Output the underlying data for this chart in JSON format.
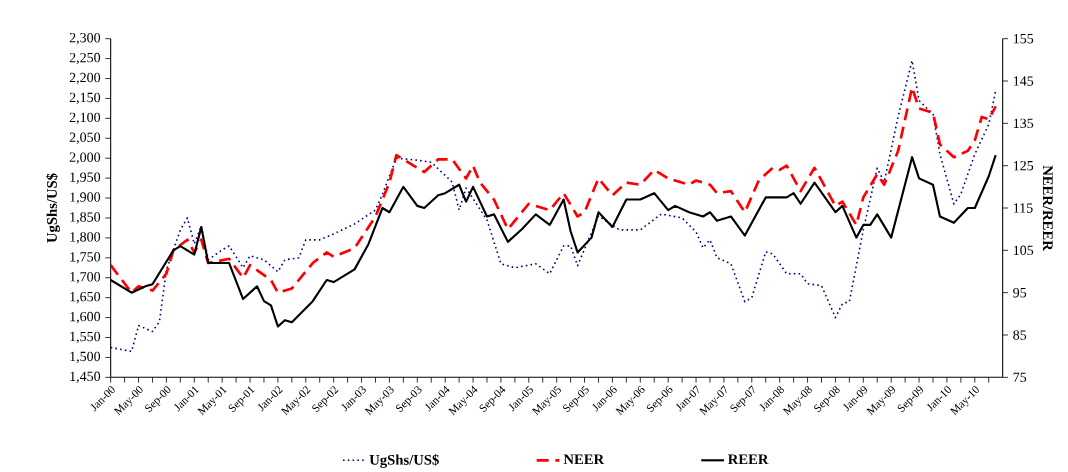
{
  "chart_data": {
    "type": "line",
    "ylabel": "UgShs/US$",
    "y2label": "NEER/REER",
    "legend": "bottom",
    "xlim": [
      "2000-01",
      "2010-09"
    ],
    "ylim": [
      1450,
      2300
    ],
    "y2lim": [
      75,
      155
    ],
    "yticks": [
      {
        "value": 1450,
        "label": "1,450"
      },
      {
        "value": 1500,
        "label": "1,500"
      },
      {
        "value": 1550,
        "label": "1,550"
      },
      {
        "value": 1600,
        "label": "1,600"
      },
      {
        "value": 1650,
        "label": "1,650"
      },
      {
        "value": 1700,
        "label": "1,700"
      },
      {
        "value": 1750,
        "label": "1,750"
      },
      {
        "value": 1800,
        "label": "1,800"
      },
      {
        "value": 1850,
        "label": "1,850"
      },
      {
        "value": 1900,
        "label": "1,900"
      },
      {
        "value": 1950,
        "label": "1,950"
      },
      {
        "value": 2000,
        "label": "2,000"
      },
      {
        "value": 2050,
        "label": "2,050"
      },
      {
        "value": 2100,
        "label": "2,100"
      },
      {
        "value": 2150,
        "label": "2,150"
      },
      {
        "value": 2200,
        "label": "2,200"
      },
      {
        "value": 2250,
        "label": "2,250"
      },
      {
        "value": 2300,
        "label": "2,300"
      }
    ],
    "y2ticks": [
      75,
      85,
      95,
      105,
      115,
      125,
      135,
      145,
      155
    ],
    "xticks": [
      {
        "value": "2000-01",
        "label": "Jan-00"
      },
      {
        "value": "2000-03",
        "label": null
      },
      {
        "value": "2000-05",
        "label": "May-00"
      },
      {
        "value": "2000-07",
        "label": null
      },
      {
        "value": "2000-09",
        "label": "Sep-00"
      },
      {
        "value": "2000-11",
        "label": null
      },
      {
        "value": "2001-01",
        "label": "Jan-01"
      },
      {
        "value": "2001-03",
        "label": null
      },
      {
        "value": "2001-05",
        "label": "May-01"
      },
      {
        "value": "2001-07",
        "label": null
      },
      {
        "value": "2001-09",
        "label": "Sep-01"
      },
      {
        "value": "2001-11",
        "label": null
      },
      {
        "value": "2002-01",
        "label": "Jan-02"
      },
      {
        "value": "2002-03",
        "label": null
      },
      {
        "value": "2002-05",
        "label": "May-02"
      },
      {
        "value": "2002-07",
        "label": null
      },
      {
        "value": "2002-09",
        "label": "Sep-02"
      },
      {
        "value": "2002-11",
        "label": null
      },
      {
        "value": "2003-01",
        "label": "Jan-03"
      },
      {
        "value": "2003-03",
        "label": null
      },
      {
        "value": "2003-05",
        "label": "May-03"
      },
      {
        "value": "2003-07",
        "label": null
      },
      {
        "value": "2003-09",
        "label": "Sep-03"
      },
      {
        "value": "2003-11",
        "label": null
      },
      {
        "value": "2004-01",
        "label": "Jan-04"
      },
      {
        "value": "2004-03",
        "label": null
      },
      {
        "value": "2004-05",
        "label": "May-04"
      },
      {
        "value": "2004-07",
        "label": null
      },
      {
        "value": "2004-09",
        "label": "Sep-04"
      },
      {
        "value": "2004-11",
        "label": null
      },
      {
        "value": "2005-01",
        "label": "Jan-05"
      },
      {
        "value": "2005-03",
        "label": null
      },
      {
        "value": "2005-05",
        "label": "May-05"
      },
      {
        "value": "2005-07",
        "label": null
      },
      {
        "value": "2005-09",
        "label": "Sep-05"
      },
      {
        "value": "2005-11",
        "label": null
      },
      {
        "value": "2006-01",
        "label": "Jan-06"
      },
      {
        "value": "2006-03",
        "label": null
      },
      {
        "value": "2006-05",
        "label": "May-06"
      },
      {
        "value": "2006-07",
        "label": null
      },
      {
        "value": "2006-09",
        "label": "Sep-06"
      },
      {
        "value": "2006-11",
        "label": null
      },
      {
        "value": "2007-01",
        "label": "Jan-07"
      },
      {
        "value": "2007-03",
        "label": null
      },
      {
        "value": "2007-05",
        "label": "May-07"
      },
      {
        "value": "2007-07",
        "label": null
      },
      {
        "value": "2007-09",
        "label": "Sep-07"
      },
      {
        "value": "2007-11",
        "label": null
      },
      {
        "value": "2008-01",
        "label": "Jan-08"
      },
      {
        "value": "2008-03",
        "label": null
      },
      {
        "value": "2008-05",
        "label": "May-08"
      },
      {
        "value": "2008-07",
        "label": null
      },
      {
        "value": "2008-09",
        "label": "Sep-08"
      },
      {
        "value": "2008-11",
        "label": null
      },
      {
        "value": "2009-01",
        "label": "Jan-09"
      },
      {
        "value": "2009-03",
        "label": null
      },
      {
        "value": "2009-05",
        "label": "May-09"
      },
      {
        "value": "2009-07",
        "label": null
      },
      {
        "value": "2009-09",
        "label": "Sep-09"
      },
      {
        "value": "2009-11",
        "label": null
      },
      {
        "value": "2010-01",
        "label": "Jan-10"
      },
      {
        "value": "2010-03",
        "label": null
      },
      {
        "value": "2010-05",
        "label": "May-10"
      },
      {
        "value": "2010-07",
        "label": null
      }
    ],
    "series": [
      {
        "name": "UgShs/US$",
        "color": "#000080",
        "line_style": "dotted",
        "x": [
          "2000-01",
          "2000-04",
          "2000-05",
          "2000-07",
          "2000-08",
          "2000-09",
          "2000-11",
          "2000-12",
          "2001-01",
          "2001-02",
          "2001-03",
          "2001-05",
          "2001-06",
          "2001-08",
          "2001-09",
          "2001-11",
          "2002-01",
          "2002-02",
          "2002-04",
          "2002-05",
          "2002-07",
          "2002-09",
          "2002-12",
          "2003-03",
          "2003-04",
          "2003-06",
          "2003-09",
          "2003-11",
          "2004-02",
          "2004-03",
          "2004-04",
          "2004-07",
          "2004-09",
          "2004-11",
          "2005-02",
          "2005-04",
          "2005-06",
          "2005-07",
          "2005-08",
          "2005-11",
          "2006-02",
          "2006-05",
          "2006-08",
          "2006-11",
          "2007-01",
          "2007-02",
          "2007-03",
          "2007-04",
          "2007-06",
          "2007-08",
          "2007-09",
          "2007-11",
          "2007-12",
          "2008-02",
          "2008-04",
          "2008-05",
          "2008-07",
          "2008-09",
          "2008-10",
          "2008-11",
          "2009-01",
          "2009-03",
          "2009-04",
          "2009-06",
          "2009-08",
          "2009-09",
          "2009-11",
          "2009-12",
          "2010-02",
          "2010-03",
          "2010-05",
          "2010-07",
          "2010-08"
        ],
        "values": [
          1525,
          1515,
          1580,
          1565,
          1590,
          1720,
          1820,
          1850,
          1785,
          1830,
          1745,
          1770,
          1780,
          1725,
          1755,
          1745,
          1715,
          1745,
          1750,
          1795,
          1795,
          1810,
          1835,
          1870,
          1910,
          2000,
          1995,
          1990,
          1940,
          1870,
          1925,
          1845,
          1735,
          1725,
          1735,
          1710,
          1780,
          1780,
          1730,
          1855,
          1820,
          1820,
          1860,
          1850,
          1815,
          1775,
          1795,
          1750,
          1735,
          1640,
          1650,
          1765,
          1760,
          1710,
          1710,
          1685,
          1680,
          1600,
          1635,
          1640,
          1820,
          1975,
          1940,
          2105,
          2245,
          2145,
          2110,
          2010,
          1885,
          1910,
          2010,
          2085,
          2170
        ]
      },
      {
        "name": "NEER",
        "color": "#ff0000",
        "line_style": "dashed",
        "axis": "y2",
        "x": [
          "2000-01",
          "2000-04",
          "2000-05",
          "2000-07",
          "2000-09",
          "2000-10",
          "2000-12",
          "2001-01",
          "2001-02",
          "2001-03",
          "2001-06",
          "2001-08",
          "2001-09",
          "2001-12",
          "2002-01",
          "2002-03",
          "2002-06",
          "2002-08",
          "2002-09",
          "2002-12",
          "2003-03",
          "2003-05",
          "2003-06",
          "2003-10",
          "2003-12",
          "2004-02",
          "2004-04",
          "2004-05",
          "2004-06",
          "2004-08",
          "2004-10",
          "2005-01",
          "2005-04",
          "2005-06",
          "2005-08",
          "2005-09",
          "2005-11",
          "2006-01",
          "2006-03",
          "2006-05",
          "2006-07",
          "2006-09",
          "2006-12",
          "2007-01",
          "2007-03",
          "2007-04",
          "2007-06",
          "2007-08",
          "2007-10",
          "2007-12",
          "2008-01",
          "2008-02",
          "2008-04",
          "2008-06",
          "2008-09",
          "2008-10",
          "2008-12",
          "2009-01",
          "2009-03",
          "2009-04",
          "2009-06",
          "2009-08",
          "2009-09",
          "2009-11",
          "2009-12",
          "2010-02",
          "2010-04",
          "2010-05",
          "2010-06",
          "2010-07",
          "2010-08"
        ],
        "values": [
          101.5,
          95,
          96.5,
          95.5,
          99.5,
          105,
          107.5,
          104.5,
          107.5,
          102,
          103,
          98.5,
          101.5,
          98,
          95,
          96,
          102,
          104.5,
          103.5,
          105.5,
          113,
          121,
          127.5,
          123.5,
          126.5,
          126.5,
          122,
          125,
          121,
          117,
          110,
          116,
          114.5,
          118.5,
          113,
          114,
          122,
          118,
          121,
          120.5,
          124,
          122,
          120.5,
          121.5,
          120.5,
          118.5,
          119,
          114,
          121.5,
          124.5,
          124,
          125,
          119,
          124.5,
          115.5,
          116.5,
          111,
          117.5,
          123,
          120.5,
          128.5,
          143.5,
          138.5,
          137.5,
          130,
          127,
          128.5,
          131,
          136.5,
          136,
          139
        ]
      },
      {
        "name": "REER",
        "color": "#000000",
        "line_style": "solid",
        "axis": "y2",
        "x": [
          "2000-01",
          "2000-04",
          "2000-06",
          "2000-07",
          "2000-10",
          "2000-11",
          "2001-01",
          "2001-02",
          "2001-03",
          "2001-06",
          "2001-08",
          "2001-10",
          "2001-11",
          "2001-12",
          "2002-01",
          "2002-02",
          "2002-03",
          "2002-06",
          "2002-08",
          "2002-09",
          "2002-12",
          "2003-02",
          "2003-04",
          "2003-05",
          "2003-07",
          "2003-09",
          "2003-10",
          "2003-12",
          "2004-01",
          "2004-03",
          "2004-04",
          "2004-05",
          "2004-07",
          "2004-08",
          "2004-10",
          "2004-12",
          "2005-02",
          "2005-04",
          "2005-06",
          "2005-07",
          "2005-08",
          "2005-10",
          "2005-11",
          "2006-01",
          "2006-03",
          "2006-05",
          "2006-07",
          "2006-09",
          "2006-10",
          "2006-12",
          "2007-02",
          "2007-03",
          "2007-04",
          "2007-06",
          "2007-08",
          "2007-11",
          "2008-02",
          "2008-03",
          "2008-04",
          "2008-06",
          "2008-09",
          "2008-10",
          "2008-12",
          "2009-01",
          "2009-02",
          "2009-03",
          "2009-05",
          "2009-08",
          "2009-09",
          "2009-11",
          "2009-12",
          "2010-02",
          "2010-04",
          "2010-05",
          "2010-07",
          "2010-08"
        ],
        "values": [
          98,
          95,
          96.5,
          97,
          105,
          106,
          104,
          110.5,
          102,
          102,
          93.5,
          96.5,
          93,
          92,
          87,
          88.5,
          88,
          93,
          98,
          97.5,
          100.5,
          106.5,
          115,
          114,
          120,
          115.5,
          115,
          118,
          118.5,
          120.5,
          116.5,
          120,
          113,
          113.5,
          107,
          110,
          113.5,
          111,
          117,
          109.5,
          104.5,
          108,
          114,
          110.5,
          117,
          117,
          118.5,
          114.5,
          115.5,
          114,
          113,
          114,
          112,
          113,
          108.5,
          117.5,
          117.5,
          118.5,
          116,
          121,
          114,
          115.5,
          108,
          111,
          111,
          113.5,
          108,
          127,
          122,
          120.5,
          113,
          111.5,
          115,
          115,
          122.5,
          127.5
        ]
      }
    ]
  }
}
